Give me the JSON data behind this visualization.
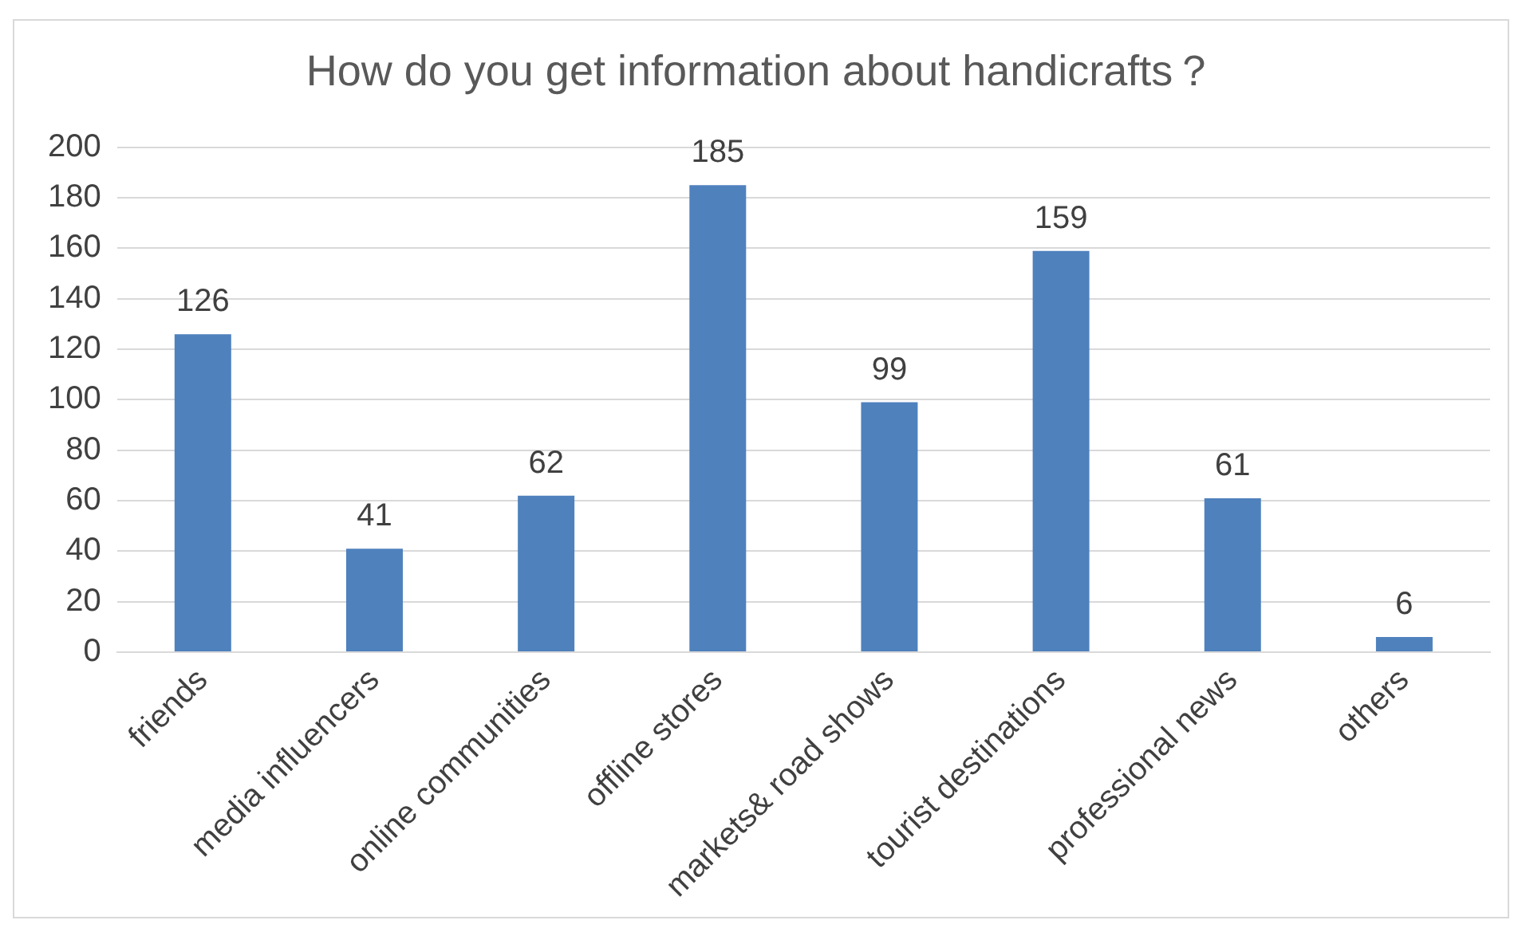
{
  "chart_data": {
    "type": "bar",
    "title": "How do you get information about handicrafts？",
    "categories": [
      "friends",
      "media influencers",
      "online communities",
      "offline stores",
      "markets& road shows",
      "tourist destinations",
      "professional news",
      "others"
    ],
    "values": [
      126,
      41,
      62,
      185,
      99,
      159,
      61,
      6
    ],
    "color": "#4f81bd",
    "ylim": [
      0,
      200
    ],
    "yticks": [
      0,
      20,
      40,
      60,
      80,
      100,
      120,
      140,
      160,
      180,
      200
    ],
    "grid": "y",
    "data_labels": true
  }
}
